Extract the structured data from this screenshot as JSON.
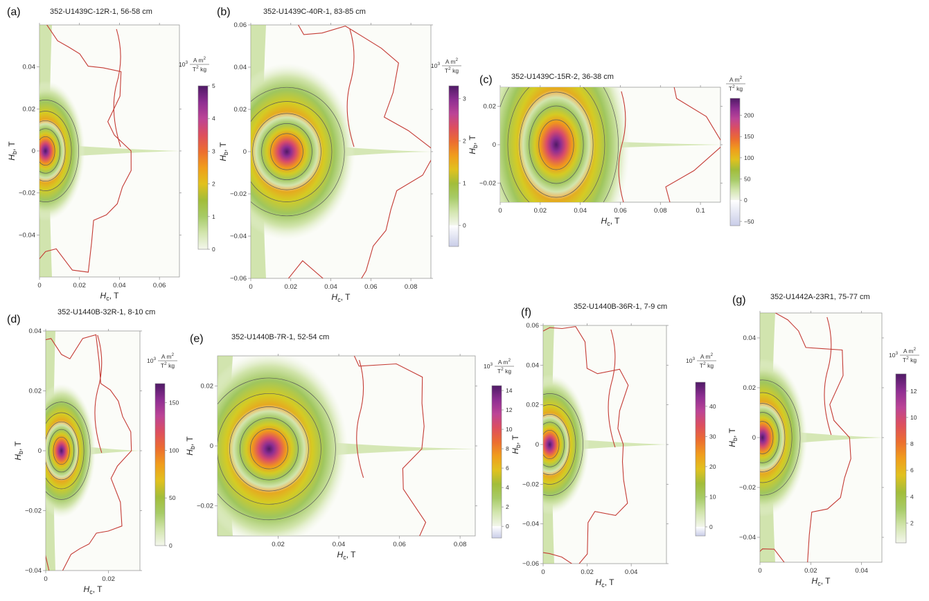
{
  "chart_data": [
    {
      "type": "heatmap",
      "panel_label": "(a)",
      "title": "352-U1439C-12R-1, 56-58 cm",
      "xlabel": "H",
      "xlabel_sub": "c",
      "xlabel_unit": ", T",
      "ylabel": "H",
      "ylabel_sub": "b",
      "ylabel_unit": ", T",
      "xlim": [
        0,
        0.07
      ],
      "ylim": [
        -0.06,
        0.06
      ],
      "xticks": [
        0,
        0.02,
        0.04,
        0.06
      ],
      "xticklabels": [
        "0",
        "0.02",
        "0.04",
        "0.06"
      ],
      "yticks": [
        0.04,
        0.02,
        0,
        -0.02,
        -0.04
      ],
      "yticklabels": [
        "0.04",
        "0.02",
        "0",
        "−0.02",
        "−0.04"
      ],
      "peak": {
        "hc": 0.003,
        "hb": 0.0
      },
      "colorbar": {
        "unit_prefix": "10",
        "unit_exp": "3",
        "unit_top": "A m",
        "unit_top_exp": "2",
        "unit_bottom": "T",
        "unit_bottom_exp": "2",
        "unit_bottom_rest": " kg",
        "min": 0,
        "max": 5,
        "ticks": [
          0,
          1,
          2,
          3,
          4,
          5
        ],
        "ticklabels": [
          "0",
          "1",
          "2",
          "3",
          "4",
          "5"
        ]
      }
    },
    {
      "type": "heatmap",
      "panel_label": "(b)",
      "title": "352-U1439C-40R-1, 83-85 cm",
      "xlabel": "H",
      "xlabel_sub": "c",
      "xlabel_unit": ", T",
      "ylabel": "H",
      "ylabel_sub": "b",
      "ylabel_unit": ", T",
      "xlim": [
        0,
        0.09
      ],
      "ylim": [
        -0.06,
        0.06
      ],
      "xticks": [
        0,
        0.02,
        0.04,
        0.06,
        0.08
      ],
      "xticklabels": [
        "0",
        "0.02",
        "0.04",
        "0.06",
        "0.08"
      ],
      "yticks": [
        0.06,
        0.04,
        0.02,
        0,
        -0.02,
        -0.04,
        -0.06
      ],
      "yticklabels": [
        "0.06",
        "0.04",
        "0.02",
        "0",
        "−0.02",
        "−0.04",
        "−0.06"
      ],
      "peak": {
        "hc": 0.018,
        "hb": 0.0
      },
      "colorbar": {
        "unit_prefix": "10",
        "unit_exp": "3",
        "unit_top": "A m",
        "unit_top_exp": "2",
        "unit_bottom": "T",
        "unit_bottom_exp": "2",
        "unit_bottom_rest": " kg",
        "min": -0.5,
        "max": 3.3,
        "ticks": [
          0,
          1,
          2,
          3
        ],
        "ticklabels": [
          "0",
          "1",
          "2",
          "3"
        ]
      }
    },
    {
      "type": "heatmap",
      "panel_label": "(c)",
      "title": "352-U1439C-15R-2, 36-38 cm",
      "xlabel": "H",
      "xlabel_sub": "c",
      "xlabel_unit": ", T",
      "ylabel": "H",
      "ylabel_sub": "b",
      "ylabel_unit": ", T",
      "xlim": [
        0,
        0.11
      ],
      "ylim": [
        -0.03,
        0.03
      ],
      "xticks": [
        0,
        0.02,
        0.04,
        0.06,
        0.08,
        0.1
      ],
      "xticklabels": [
        "0",
        "0.02",
        "0.04",
        "0.06",
        "0.08",
        "0.1"
      ],
      "yticks": [
        0.02,
        0,
        -0.02
      ],
      "yticklabels": [
        "0.02",
        "0",
        "−0.02"
      ],
      "peak": {
        "hc": 0.028,
        "hb": 0.0
      },
      "colorbar": {
        "unit_prefix": "",
        "unit_exp": "",
        "unit_top": "A m",
        "unit_top_exp": "2",
        "unit_bottom": "T",
        "unit_bottom_exp": "2",
        "unit_bottom_rest": " kg",
        "min": -60,
        "max": 240,
        "ticks": [
          -50,
          0,
          50,
          100,
          150,
          200
        ],
        "ticklabels": [
          "−50",
          "0",
          "50",
          "100",
          "150",
          "200"
        ]
      }
    },
    {
      "type": "heatmap",
      "panel_label": "(d)",
      "title": "352-U1440B-32R-1, 8-10 cm",
      "xlabel": "H",
      "xlabel_sub": "c",
      "xlabel_unit": ", T",
      "ylabel": "H",
      "ylabel_sub": "b",
      "ylabel_unit": ", T",
      "xlim": [
        0,
        0.03
      ],
      "ylim": [
        -0.04,
        0.04
      ],
      "xticks": [
        0,
        0.02
      ],
      "xticklabels": [
        "0",
        "0.02"
      ],
      "yticks": [
        0.04,
        0.02,
        0,
        -0.02,
        -0.04
      ],
      "yticklabels": [
        "0.04",
        "0.02",
        "0",
        "−0.02",
        "−0.04"
      ],
      "peak": {
        "hc": 0.005,
        "hb": 0.0
      },
      "colorbar": {
        "unit_prefix": "10",
        "unit_exp": "3",
        "unit_top": "A m",
        "unit_top_exp": "2",
        "unit_bottom": "T",
        "unit_bottom_exp": "2",
        "unit_bottom_rest": " kg",
        "min": 0,
        "max": 170,
        "ticks": [
          0,
          50,
          100,
          150
        ],
        "ticklabels": [
          "0",
          "50",
          "100",
          "150"
        ]
      }
    },
    {
      "type": "heatmap",
      "panel_label": "(e)",
      "title": "352-U1440B-7R-1, 52-54 cm",
      "xlabel": "H",
      "xlabel_sub": "c",
      "xlabel_unit": ", T",
      "ylabel": "H",
      "ylabel_sub": "b",
      "ylabel_unit": ", T",
      "xlim": [
        0,
        0.085
      ],
      "ylim": [
        -0.03,
        0.03
      ],
      "xticks": [
        0.02,
        0.04,
        0.06,
        0.08
      ],
      "xticklabels": [
        "0.02",
        "0.04",
        "0.06",
        "0.08"
      ],
      "yticks": [
        0.02,
        0,
        -0.02
      ],
      "yticklabels": [
        "0.02",
        "0",
        "−0.02"
      ],
      "peak": {
        "hc": 0.017,
        "hb": -0.001
      },
      "colorbar": {
        "unit_prefix": "10",
        "unit_exp": "3",
        "unit_top": "A m",
        "unit_top_exp": "2",
        "unit_bottom": "T",
        "unit_bottom_exp": "2",
        "unit_bottom_rest": " kg",
        "min": -1.2,
        "max": 14.5,
        "ticks": [
          0,
          2,
          4,
          6,
          8,
          10,
          12,
          14
        ],
        "ticklabels": [
          "0",
          "2",
          "4",
          "6",
          "8",
          "10",
          "12",
          "14"
        ]
      }
    },
    {
      "type": "heatmap",
      "panel_label": "(f)",
      "title": "352-U1440B-36R-1, 7-9 cm",
      "xlabel": "H",
      "xlabel_sub": "c",
      "xlabel_unit": ", T",
      "ylabel": "H",
      "ylabel_sub": "b",
      "ylabel_unit": ", T",
      "xlim": [
        0,
        0.056
      ],
      "ylim": [
        -0.06,
        0.06
      ],
      "xticks": [
        0,
        0.02,
        0.04
      ],
      "xticklabels": [
        "0",
        "0.02",
        "0.04"
      ],
      "yticks": [
        0.06,
        0.04,
        0.02,
        0,
        -0.02,
        -0.04,
        -0.06
      ],
      "yticklabels": [
        "0.06",
        "0.04",
        "0.02",
        "0",
        "−0.02",
        "−0.04",
        "−0.06"
      ],
      "peak": {
        "hc": 0.003,
        "hb": 0.0
      },
      "colorbar": {
        "unit_prefix": "10",
        "unit_exp": "3",
        "unit_top": "A m",
        "unit_top_exp": "2",
        "unit_bottom": "T",
        "unit_bottom_exp": "2",
        "unit_bottom_rest": " kg",
        "min": -3,
        "max": 48,
        "ticks": [
          0,
          10,
          20,
          30,
          40
        ],
        "ticklabels": [
          "0",
          "10",
          "20",
          "30",
          "40"
        ]
      }
    },
    {
      "type": "heatmap",
      "panel_label": "(g)",
      "title": "352-U1442A-23R1, 75-77 cm",
      "xlabel": "H",
      "xlabel_sub": "c",
      "xlabel_unit": ", T",
      "ylabel": "H",
      "ylabel_sub": "b",
      "ylabel_unit": ", T",
      "xlim": [
        0,
        0.048
      ],
      "ylim": [
        -0.05,
        0.05
      ],
      "xticks": [
        0,
        0.02,
        0.04
      ],
      "xticklabels": [
        "0",
        "0.02",
        "0.04"
      ],
      "yticks": [
        0.04,
        0.02,
        0,
        -0.02,
        -0.04
      ],
      "yticklabels": [
        "0.04",
        "0.02",
        "0",
        "−0.02",
        "−0.04"
      ],
      "peak": {
        "hc": 0.001,
        "hb": 0.0
      },
      "colorbar": {
        "unit_prefix": "10",
        "unit_exp": "3",
        "unit_top": "A m",
        "unit_top_exp": "2",
        "unit_bottom": "T",
        "unit_bottom_exp": "2",
        "unit_bottom_rest": " kg",
        "min": 0.5,
        "max": 13.3,
        "ticks": [
          2,
          4,
          6,
          8,
          10,
          12
        ],
        "ticklabels": [
          "2",
          "4",
          "6",
          "8",
          "10",
          "12"
        ]
      }
    }
  ],
  "colors": {
    "colormap": [
      "#f3f6ec",
      "#d6e7b4",
      "#aed070",
      "#8bb744",
      "#d8cc22",
      "#efb018",
      "#f08a20",
      "#ea5a3a",
      "#d84a6e",
      "#b542a0",
      "#8a2c90",
      "#4f1a66"
    ],
    "negative": "#c9cde8",
    "contour_zero": "#c43a34",
    "contour": "#5a5a5a"
  }
}
